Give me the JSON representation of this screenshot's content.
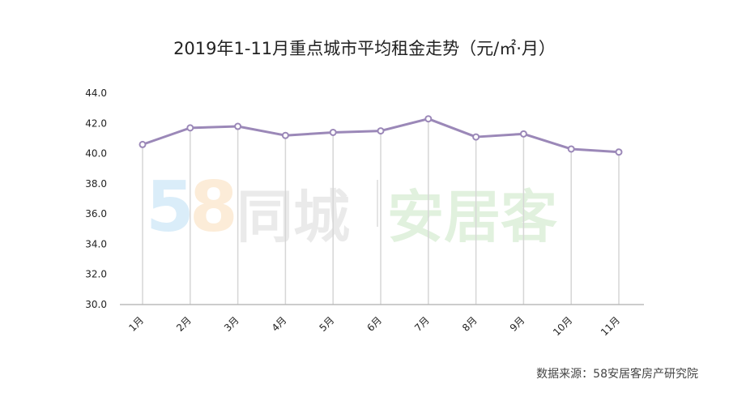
{
  "watermark": {
    "brand_num_a": "5",
    "brand_num_b": "8",
    "brand_a": "同城",
    "brand_b": "安居客"
  },
  "source": "数据来源：58安居客房产研究院",
  "colors": {
    "line": "#9b88b8",
    "grid": "#d6d6d6",
    "axis": "#bbbbbb",
    "text": "#222222"
  },
  "chart_data": {
    "type": "line",
    "title": "2019年1-11月重点城市平均租金走势（元/㎡·月）",
    "categories": [
      "1月",
      "2月",
      "3月",
      "4月",
      "5月",
      "6月",
      "7月",
      "8月",
      "9月",
      "10月",
      "11月"
    ],
    "series": [
      {
        "values": [
          40.6,
          41.7,
          41.8,
          41.2,
          41.4,
          41.5,
          42.3,
          41.1,
          41.3,
          40.3,
          40.1
        ]
      }
    ],
    "ylim": [
      30.0,
      44.0
    ],
    "yticks": [
      "30.0",
      "32.0",
      "34.0",
      "36.0",
      "38.0",
      "40.0",
      "42.0",
      "44.0"
    ],
    "grid": "vertical-drop-lines",
    "legend": "none"
  }
}
